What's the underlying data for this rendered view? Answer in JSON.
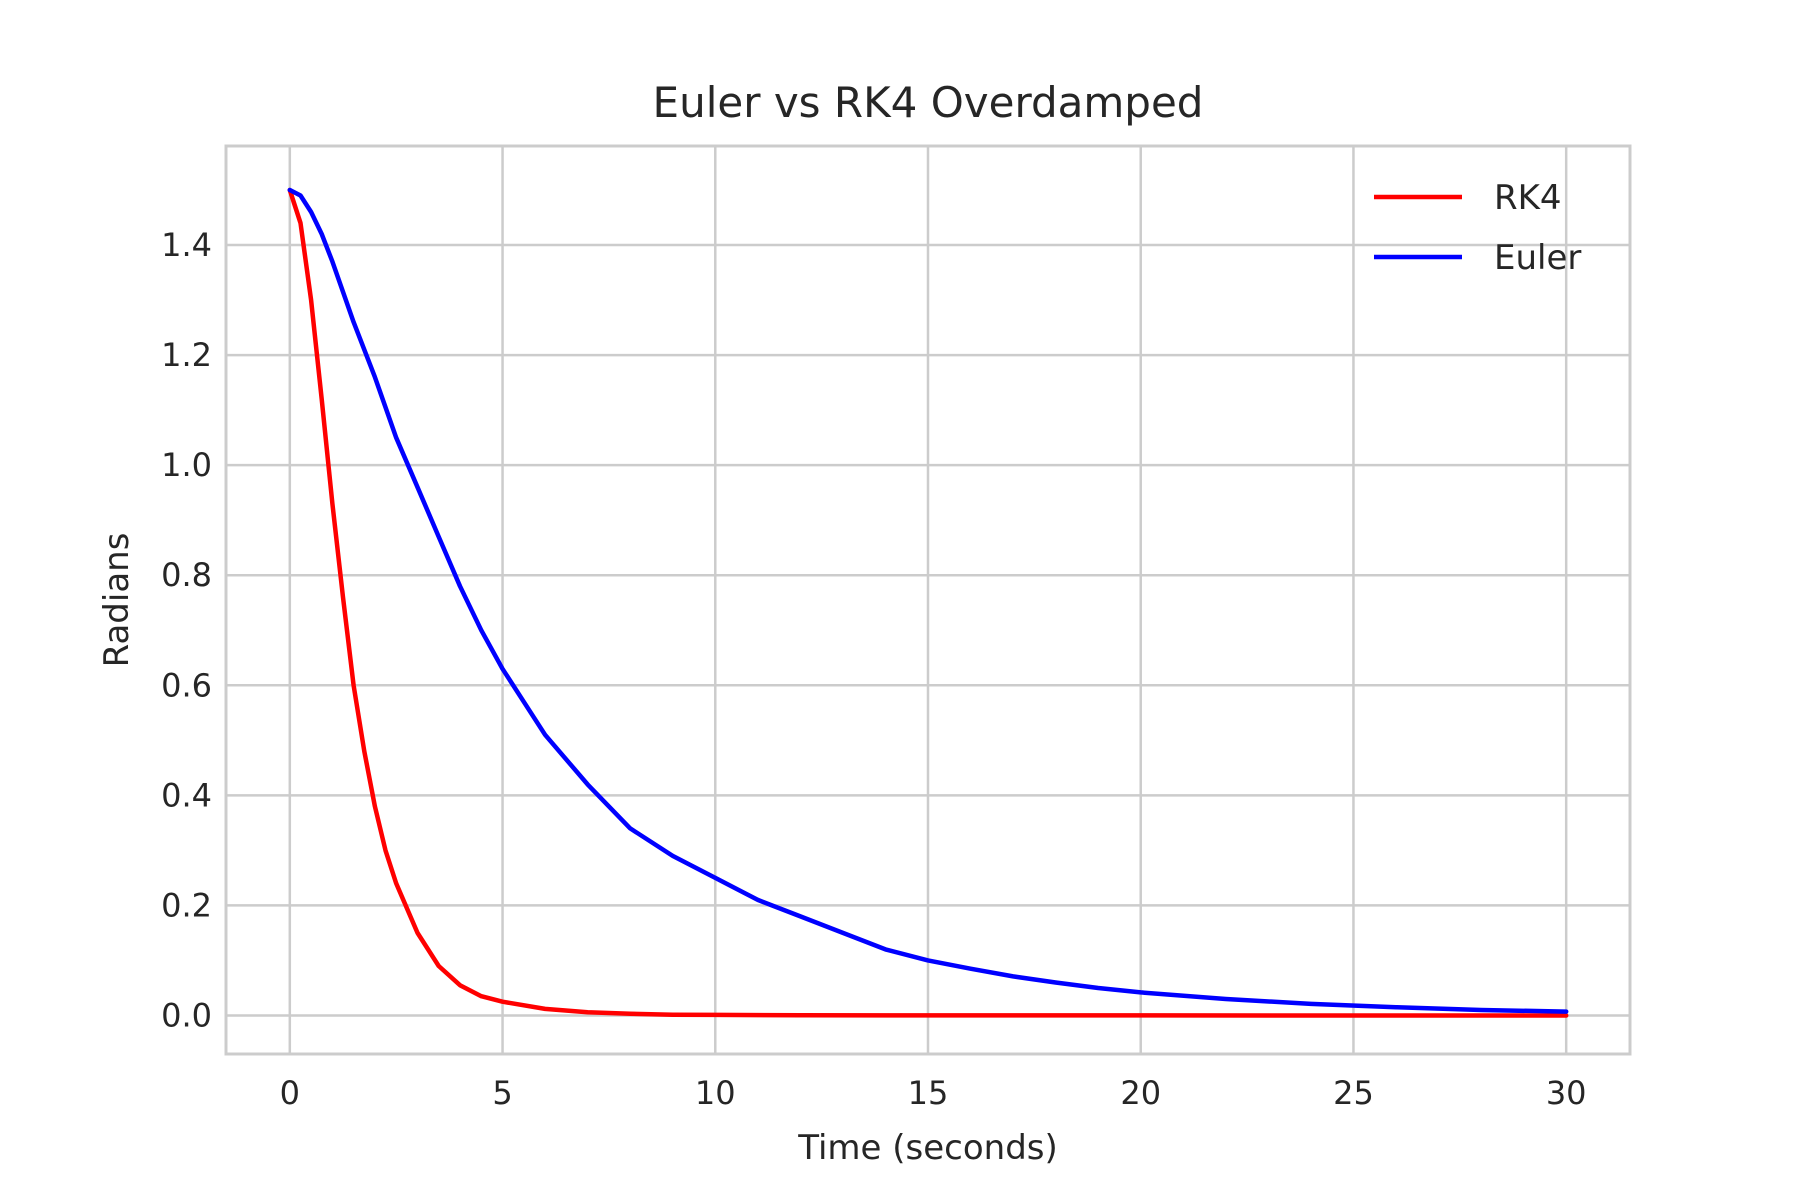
{
  "chart_data": {
    "type": "line",
    "title": "Euler vs RK4  Overdamped",
    "xlabel": "Time (seconds)",
    "ylabel": "Radians",
    "xlim": [
      -1.5,
      31.5
    ],
    "ylim": [
      -0.07,
      1.58
    ],
    "xticks": [
      0,
      5,
      10,
      15,
      20,
      25,
      30
    ],
    "yticks": [
      0.0,
      0.2,
      0.4,
      0.6,
      0.8,
      1.0,
      1.2,
      1.4
    ],
    "x_tick_labels": [
      "0",
      "5",
      "10",
      "15",
      "20",
      "25",
      "30"
    ],
    "y_tick_labels": [
      "0.0",
      "0.2",
      "0.4",
      "0.6",
      "0.8",
      "1.0",
      "1.2",
      "1.4"
    ],
    "grid": true,
    "legend_position": "top-right",
    "series": [
      {
        "name": "RK4",
        "color": "#ff0000",
        "x": [
          0,
          0.25,
          0.5,
          0.75,
          1,
          1.25,
          1.5,
          1.75,
          2,
          2.25,
          2.5,
          3,
          3.5,
          4,
          4.5,
          5,
          6,
          7,
          8,
          9,
          10,
          12,
          15,
          20,
          25,
          30
        ],
        "y": [
          1.5,
          1.44,
          1.3,
          1.12,
          0.93,
          0.76,
          0.6,
          0.48,
          0.38,
          0.3,
          0.24,
          0.15,
          0.09,
          0.055,
          0.035,
          0.025,
          0.012,
          0.006,
          0.003,
          0.0015,
          0.001,
          0.0005,
          0.0002,
          0.0001,
          0.0,
          0.0
        ]
      },
      {
        "name": "Euler",
        "color": "#0000ff",
        "x": [
          0,
          0.25,
          0.5,
          0.75,
          1,
          1.5,
          2,
          2.5,
          3,
          3.5,
          4,
          4.5,
          5,
          5.5,
          6,
          7,
          8,
          9,
          10,
          11,
          12,
          13,
          14,
          15,
          16,
          17,
          18,
          19,
          20,
          22,
          24,
          26,
          28,
          30
        ],
        "y": [
          1.5,
          1.49,
          1.46,
          1.42,
          1.37,
          1.26,
          1.16,
          1.05,
          0.96,
          0.87,
          0.78,
          0.7,
          0.63,
          0.57,
          0.51,
          0.42,
          0.34,
          0.29,
          0.25,
          0.21,
          0.18,
          0.15,
          0.12,
          0.1,
          0.085,
          0.071,
          0.06,
          0.05,
          0.042,
          0.03,
          0.021,
          0.015,
          0.01,
          0.007
        ]
      }
    ]
  }
}
